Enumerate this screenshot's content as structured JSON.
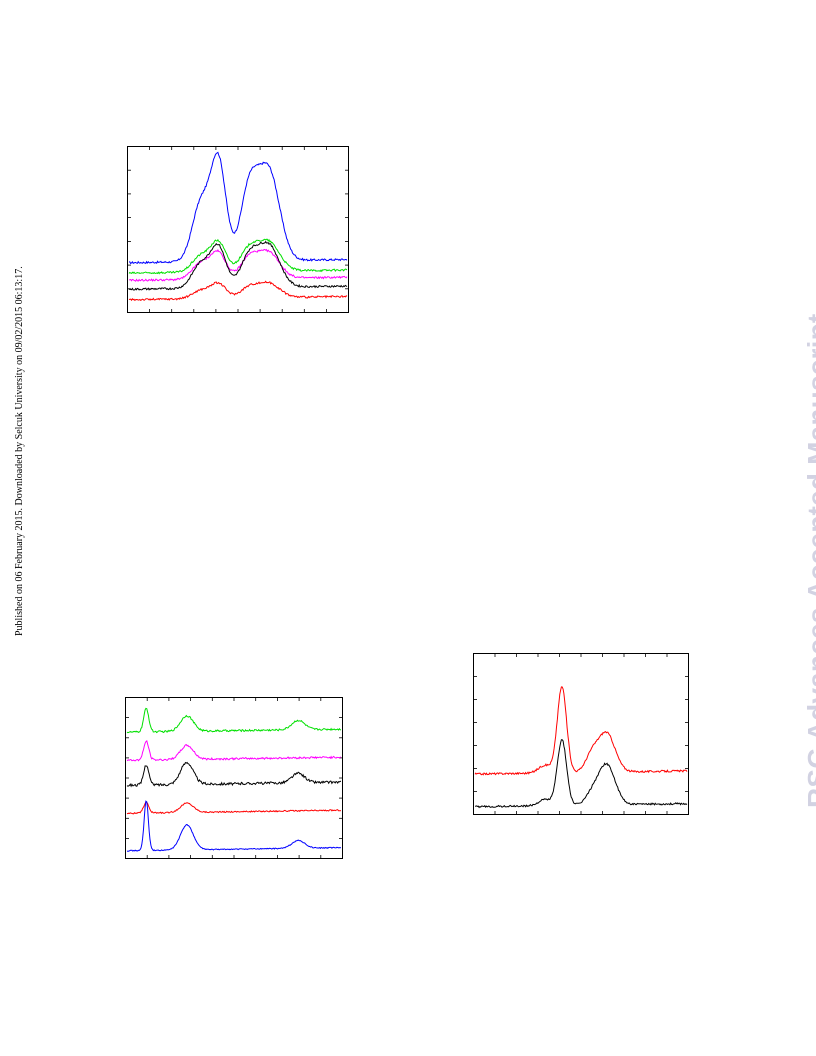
{
  "margin_note": "Published on 06 February 2015. Downloaded by Selcuk University on 09/02/2015 06:13:17.",
  "watermark": "RSC Advances Accepted Manuscript",
  "colors": {
    "blue": "#0000ff",
    "green": "#00e000",
    "magenta": "#ff00ff",
    "black": "#000000",
    "red": "#ff0000"
  },
  "chart_data": [
    {
      "type": "line",
      "title": "",
      "xlabel": "",
      "ylabel": "",
      "xlim": [
        0,
        1
      ],
      "ylim": [
        0,
        1
      ],
      "x_ticks": 10,
      "y_ticks": 7,
      "grid": false,
      "legend": "none",
      "series": [
        {
          "color": "blue",
          "baseline": 0.3,
          "peaks": [
            [
              0.33,
              0.04,
              0.36
            ],
            [
              0.41,
              0.035,
              0.62
            ],
            [
              0.55,
              0.04,
              0.42
            ],
            [
              0.64,
              0.05,
              0.56
            ]
          ],
          "noise": 0.006
        },
        {
          "color": "green",
          "baseline": 0.235,
          "peaks": [
            [
              0.33,
              0.04,
              0.1
            ],
            [
              0.41,
              0.035,
              0.18
            ],
            [
              0.55,
              0.04,
              0.13
            ],
            [
              0.64,
              0.05,
              0.18
            ]
          ],
          "noise": 0.006
        },
        {
          "color": "magenta",
          "baseline": 0.19,
          "peaks": [
            [
              0.33,
              0.04,
              0.1
            ],
            [
              0.41,
              0.035,
              0.16
            ],
            [
              0.55,
              0.04,
              0.12
            ],
            [
              0.64,
              0.05,
              0.16
            ]
          ],
          "noise": 0.006
        },
        {
          "color": "black",
          "baseline": 0.135,
          "peaks": [
            [
              0.33,
              0.04,
              0.15
            ],
            [
              0.41,
              0.035,
              0.25
            ],
            [
              0.55,
              0.04,
              0.18
            ],
            [
              0.64,
              0.05,
              0.26
            ]
          ],
          "noise": 0.006
        },
        {
          "color": "red",
          "baseline": 0.07,
          "peaks": [
            [
              0.33,
              0.04,
              0.05
            ],
            [
              0.41,
              0.035,
              0.09
            ],
            [
              0.55,
              0.04,
              0.06
            ],
            [
              0.64,
              0.05,
              0.09
            ]
          ],
          "noise": 0.006
        }
      ]
    },
    {
      "type": "line",
      "title": "",
      "xlabel": "",
      "ylabel": "",
      "xlim": [
        0,
        1
      ],
      "ylim": [
        0,
        1
      ],
      "x_ticks": 10,
      "y_ticks": 8,
      "grid": false,
      "legend": "none",
      "series": [
        {
          "color": "green",
          "baseline": 0.8,
          "peaks": [
            [
              0.09,
              0.012,
              0.15
            ],
            [
              0.28,
              0.03,
              0.1
            ],
            [
              0.8,
              0.03,
              0.06
            ]
          ],
          "noise": 0.006
        },
        {
          "color": "magenta",
          "baseline": 0.62,
          "peaks": [
            [
              0.09,
              0.012,
              0.12
            ],
            [
              0.28,
              0.03,
              0.09
            ]
          ],
          "noise": 0.006
        },
        {
          "color": "black",
          "baseline": 0.46,
          "peaks": [
            [
              0.09,
              0.012,
              0.13
            ],
            [
              0.28,
              0.03,
              0.14
            ],
            [
              0.8,
              0.03,
              0.06
            ]
          ],
          "noise": 0.008
        },
        {
          "color": "red",
          "baseline": 0.28,
          "peaks": [
            [
              0.09,
              0.012,
              0.07
            ],
            [
              0.28,
              0.03,
              0.06
            ]
          ],
          "noise": 0.004
        },
        {
          "color": "blue",
          "baseline": 0.04,
          "peaks": [
            [
              0.09,
              0.01,
              0.32
            ],
            [
              0.28,
              0.03,
              0.16
            ],
            [
              0.8,
              0.03,
              0.05
            ]
          ],
          "noise": 0.003
        }
      ]
    },
    {
      "type": "line",
      "title": "",
      "xlabel": "",
      "ylabel": "",
      "xlim": [
        0,
        1
      ],
      "ylim": [
        0,
        1
      ],
      "x_ticks": 10,
      "y_ticks": 7,
      "grid": false,
      "legend": "none",
      "series": [
        {
          "color": "red",
          "baseline": 0.25,
          "peaks": [
            [
              0.33,
              0.03,
              0.05
            ],
            [
              0.41,
              0.022,
              0.55
            ],
            [
              0.55,
              0.03,
              0.1
            ],
            [
              0.62,
              0.04,
              0.25
            ]
          ],
          "noise": 0.006
        },
        {
          "color": "black",
          "baseline": 0.04,
          "peaks": [
            [
              0.33,
              0.03,
              0.04
            ],
            [
              0.41,
              0.022,
              0.42
            ],
            [
              0.55,
              0.03,
              0.06
            ],
            [
              0.62,
              0.04,
              0.26
            ]
          ],
          "noise": 0.006
        }
      ]
    }
  ]
}
